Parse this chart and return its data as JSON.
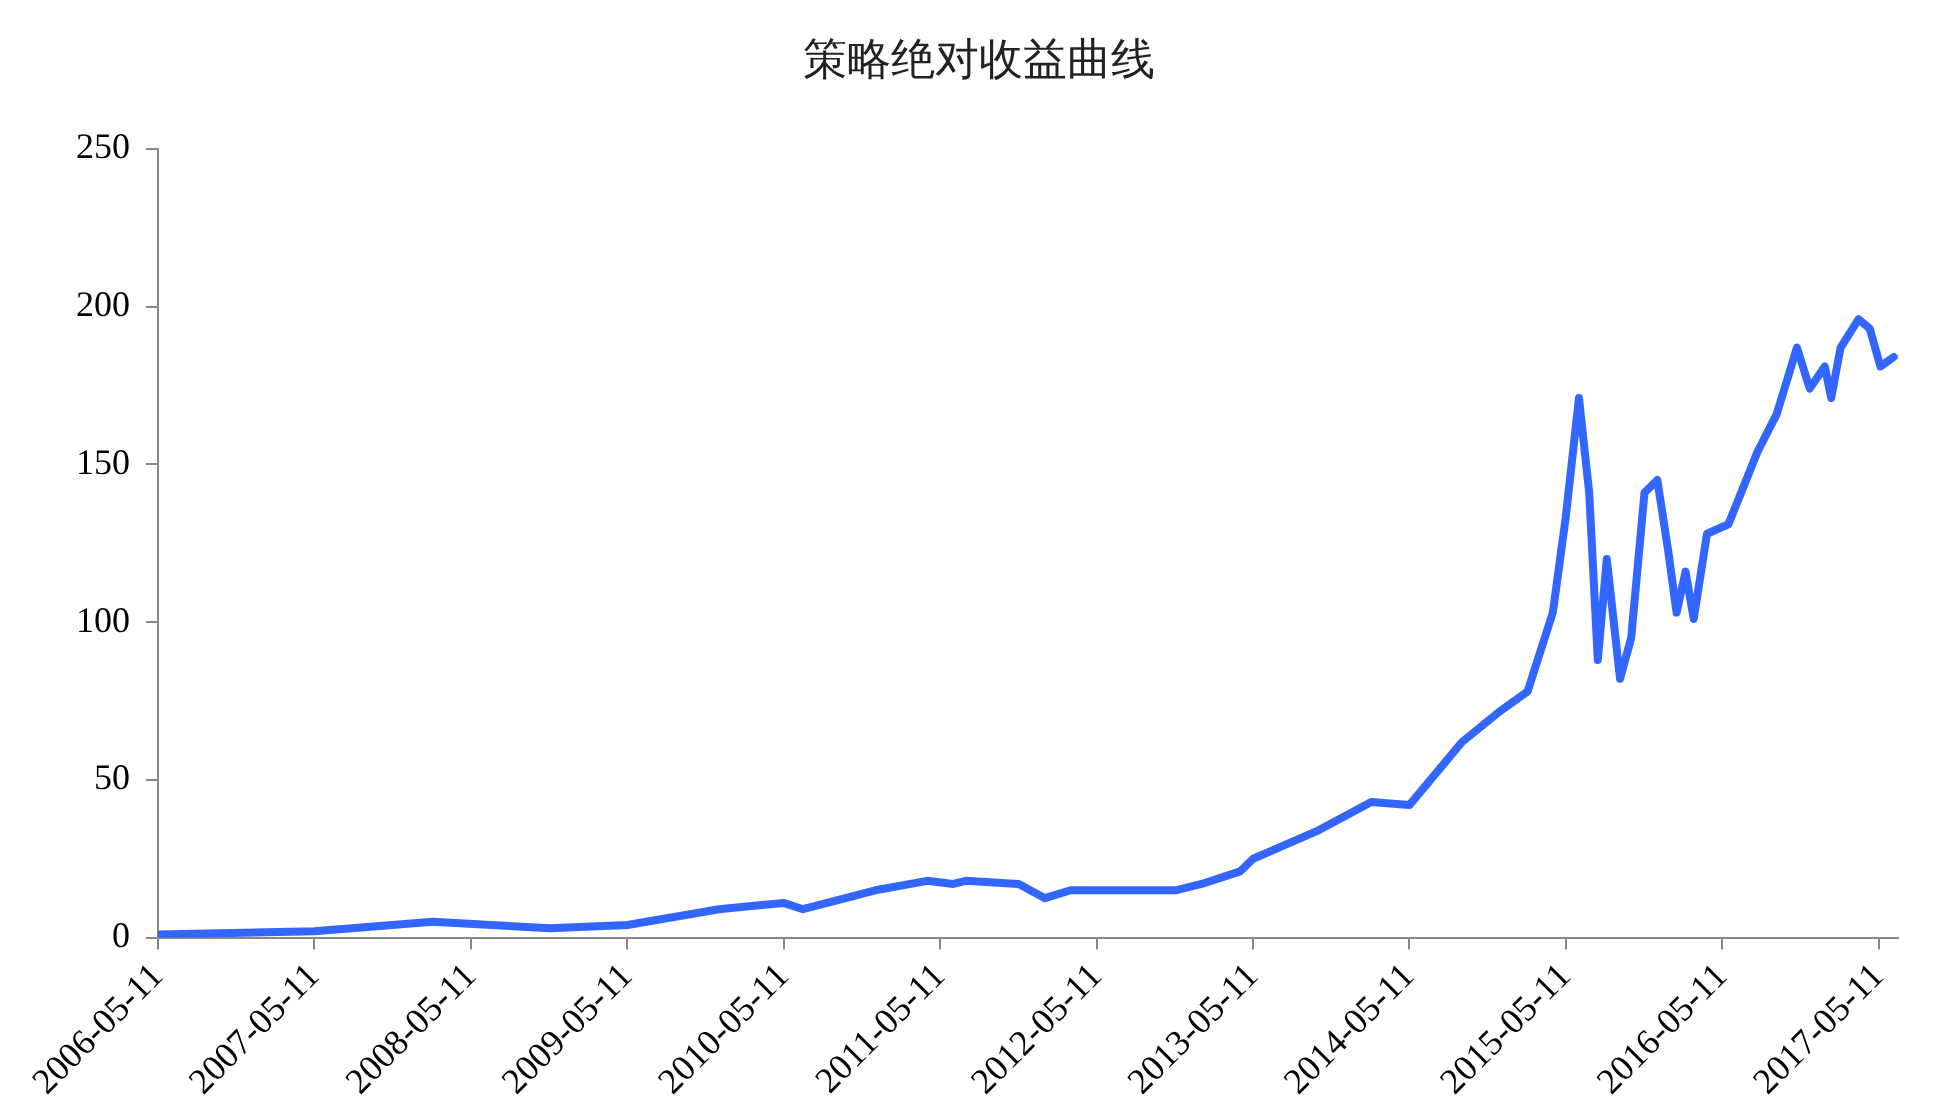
{
  "chart_data": {
    "type": "line",
    "title": "策略绝对收益曲线",
    "x": [
      "2006-05-11",
      "2007-05-11",
      "2008-02-11",
      "2008-11-11",
      "2009-05-11",
      "2009-12-11",
      "2010-05-11",
      "2010-06-25",
      "2010-12-11",
      "2011-04-11",
      "2011-06-11",
      "2011-07-11",
      "2011-11-11",
      "2012-01-11",
      "2012-03-11",
      "2012-11-11",
      "2013-01-11",
      "2013-04-11",
      "2013-05-11",
      "2013-10-11",
      "2014-02-11",
      "2014-05-11",
      "2014-09-11",
      "2014-12-11",
      "2015-02-11",
      "2015-04-11",
      "2015-05-11",
      "2015-06-11",
      "2015-07-05",
      "2015-07-25",
      "2015-08-15",
      "2015-09-15",
      "2015-10-11",
      "2015-11-11",
      "2015-12-11",
      "2016-01-05",
      "2016-01-25",
      "2016-02-15",
      "2016-03-05",
      "2016-04-05",
      "2016-05-25",
      "2016-08-01",
      "2016-09-15",
      "2016-11-01",
      "2016-12-01",
      "2017-01-05",
      "2017-01-20",
      "2017-02-11",
      "2017-03-25",
      "2017-04-20",
      "2017-05-15",
      "2017-06-15"
    ],
    "series": [
      {
        "color": "#3366ff",
        "values": [
          1,
          2,
          5,
          3,
          4,
          9,
          11,
          9,
          15,
          18,
          17,
          18,
          17,
          12.5,
          15,
          15,
          17,
          21,
          25,
          34,
          43,
          42,
          62,
          72,
          78,
          103,
          133,
          171,
          141,
          88,
          120,
          82,
          95,
          141,
          145,
          123,
          103,
          116,
          101,
          128,
          131,
          154,
          166,
          187,
          174,
          181,
          171,
          187,
          196,
          193,
          181,
          184
        ]
      }
    ],
    "xlim": [
      "2006-05-11",
      "2017-06-25"
    ],
    "xticks": [
      "2006-05-11",
      "2007-05-11",
      "2008-05-11",
      "2009-05-11",
      "2010-05-11",
      "2011-05-11",
      "2012-05-11",
      "2013-05-11",
      "2014-05-11",
      "2015-05-11",
      "2016-05-11",
      "2017-05-11"
    ],
    "ylim": [
      0,
      250
    ],
    "yticks": [
      0,
      50,
      100,
      150,
      200,
      250
    ],
    "grid": false,
    "legend": false,
    "marker": "none",
    "line_style": "solid"
  }
}
